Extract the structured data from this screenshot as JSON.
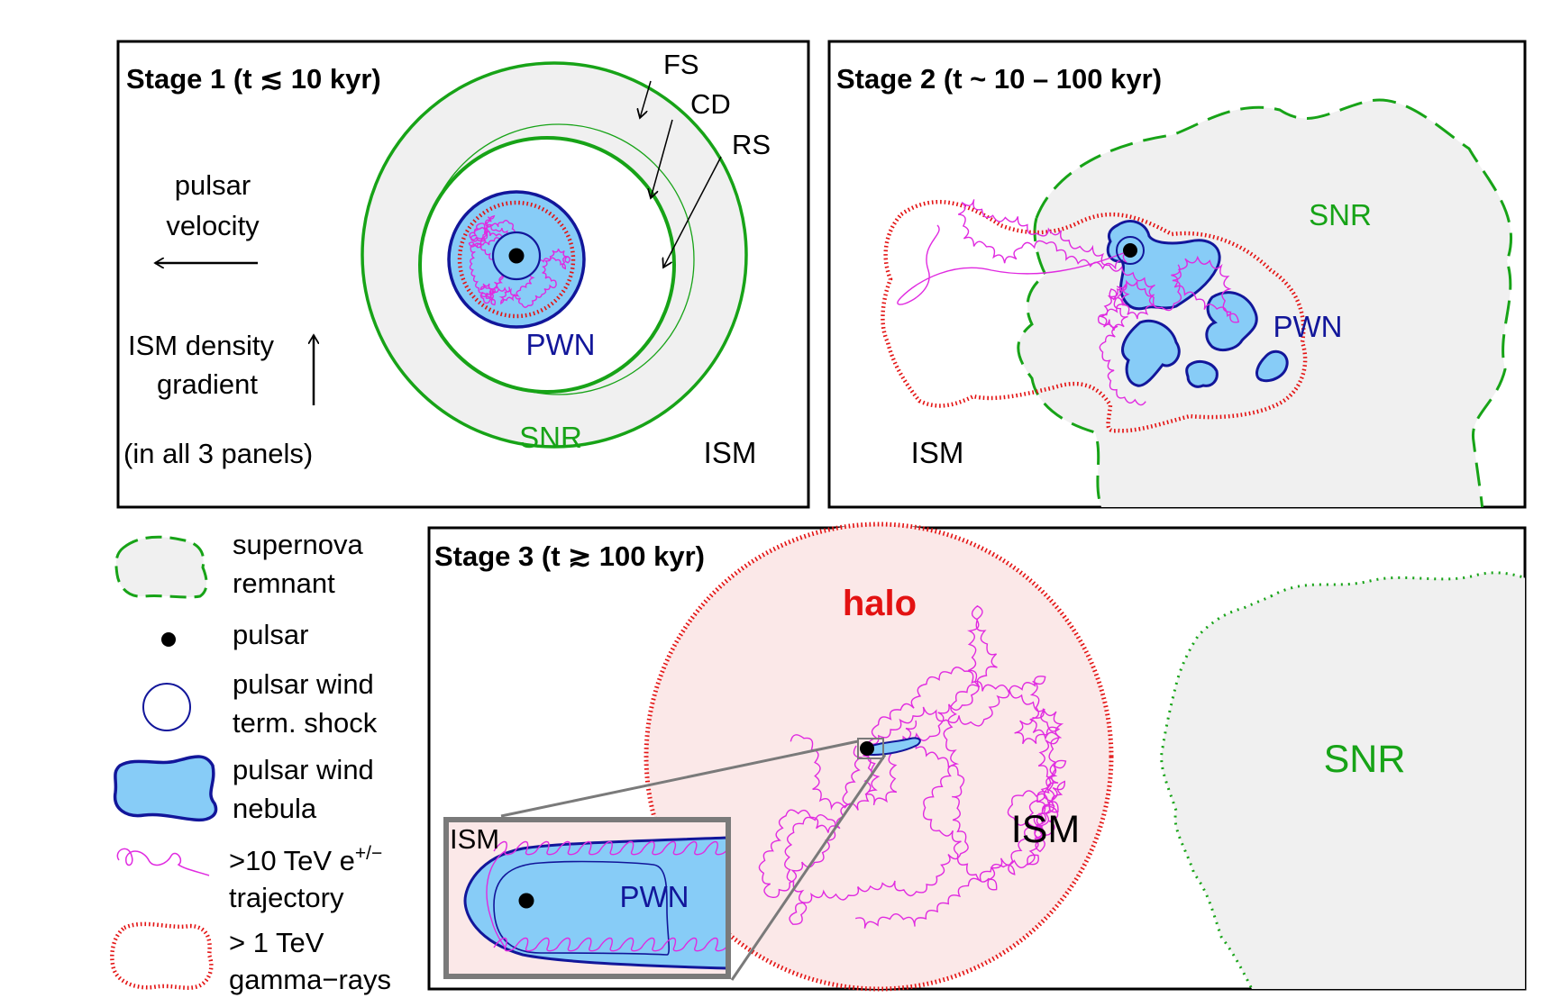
{
  "colors": {
    "snr_green": "#17a317",
    "snr_fill": "#f0f0f0",
    "pwn_fill": "#87ccf7",
    "pwn_edge": "#12169a",
    "electron_track": "#e02ae0",
    "gamma_red": "#e31212",
    "halo_fill": "#fbe8e8",
    "panel_border": "#000000",
    "inset_border": "#7a7a7a"
  },
  "panel1": {
    "title_prefix": "Stage 1 (t ",
    "title_symbol": "≲",
    "title_suffix": " 10 kyr)",
    "fs": "FS",
    "cd": "CD",
    "rs": "RS",
    "velocity_line1": "pulsar",
    "velocity_line2": "velocity",
    "density_line1": "ISM density",
    "density_line2": "gradient",
    "note": "(in all 3 panels)",
    "pwn": "PWN",
    "snr": "SNR",
    "ism": "ISM"
  },
  "panel2": {
    "title": "Stage 2 (t ~ 10 – 100 kyr)",
    "snr": "SNR",
    "pwn": "PWN",
    "ism": "ISM"
  },
  "panel3": {
    "title_prefix": "Stage 3 (t ",
    "title_symbol": "≳",
    "title_suffix": " 100 kyr)",
    "halo": "halo",
    "ism": "ISM",
    "snr": "SNR",
    "inset_ism": "ISM",
    "inset_pwn": "PWN"
  },
  "legend": {
    "snr_line1": "supernova",
    "snr_line2": "remnant",
    "pulsar": "pulsar",
    "shock_line1": "pulsar wind",
    "shock_line2": "term. shock",
    "pwn_line1": "pulsar wind",
    "pwn_line2": "nebula",
    "electron_line1_prefix": ">10 TeV e",
    "electron_line1_sup": "+/−",
    "electron_line2": "trajectory",
    "gamma_line1": "> 1 TeV",
    "gamma_line2": "gamma−rays"
  }
}
